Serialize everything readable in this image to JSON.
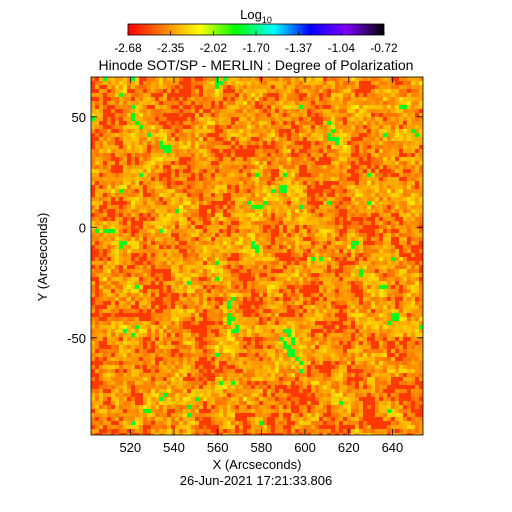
{
  "chart_data": {
    "type": "heatmap",
    "title": "Hinode SOT/SP - MERLIN : Degree of Polarization",
    "colorbar": {
      "label_base": "Log",
      "label_sub": "10",
      "ticks": [
        "-2.68",
        "-2.35",
        "-2.02",
        "-1.70",
        "-1.37",
        "-1.04",
        "-0.72"
      ],
      "range": [
        -2.68,
        -0.72
      ],
      "colormap": [
        "#ff0000",
        "#ff8000",
        "#ffff00",
        "#00ff00",
        "#00ffff",
        "#0000ff",
        "#8000ff",
        "#000000"
      ]
    },
    "xlabel": "X (Arcseconds)",
    "ylabel": "Y (Arcseconds)",
    "xlim": [
      502,
      654
    ],
    "ylim": [
      -94,
      68
    ],
    "xticks": [
      520,
      540,
      560,
      580,
      600,
      620,
      640
    ],
    "yticks": [
      50,
      0,
      -50
    ],
    "dominant_value": -2.6,
    "timestamp": "26-Jun-2021 17:21:33.806"
  }
}
